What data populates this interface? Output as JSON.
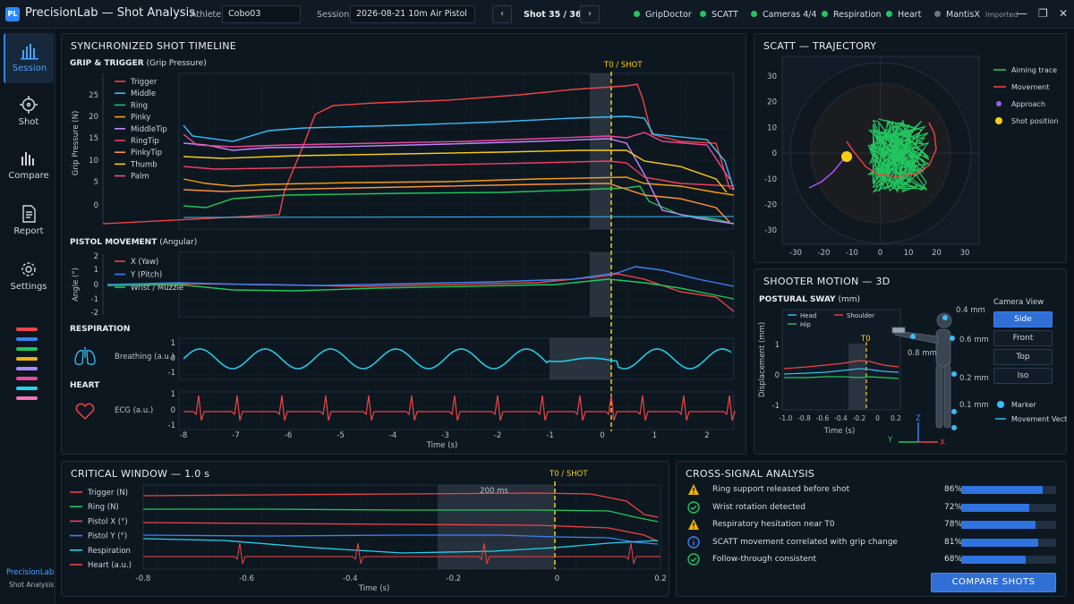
{
  "app": {
    "title": "PrecisionLab — Shot Analysis",
    "logo": "PL"
  },
  "header": {
    "athlete_label": "Athlete",
    "athlete_value": "Cobo03",
    "session_label": "Session",
    "session_value": "2026-08-21 10m Air Pistol",
    "shot_counter": "Shot 35 / 36",
    "prev": "‹",
    "next": "›",
    "statuses": [
      {
        "label": "GripDoctor",
        "color": "#22c55e"
      },
      {
        "label": "SCATT",
        "color": "#22c55e"
      },
      {
        "label": "Cameras 4/4",
        "color": "#22c55e"
      },
      {
        "label": "Respiration",
        "color": "#22c55e"
      },
      {
        "label": "Heart",
        "color": "#22c55e"
      },
      {
        "label": "MantisX",
        "color": "#6b7785",
        "extra": "Imported"
      }
    ],
    "window_controls": [
      "—",
      "❐",
      "✕"
    ]
  },
  "sidebar": {
    "items": [
      {
        "label": "Session",
        "icon": "bar-chart-icon",
        "active": true
      },
      {
        "label": "Shot",
        "icon": "crosshair-icon",
        "active": false
      },
      {
        "label": "Compare",
        "icon": "compare-bars-icon",
        "active": false
      },
      {
        "label": "Report",
        "icon": "report-icon",
        "active": false
      },
      {
        "label": "Settings",
        "icon": "gear-icon",
        "active": false
      }
    ],
    "swatches": [
      "#ef4444",
      "#3b82f6",
      "#22c55e",
      "#eab308",
      "#a78bfa",
      "#ec4899",
      "#22d3ee",
      "#f472b6"
    ],
    "footer_brand": "PrecisionLab",
    "footer_sub": "Shot Analysis"
  },
  "timeline": {
    "title": "SYNCHRONIZED SHOT TIMELINE",
    "t0_label": "T0 / SHOT",
    "grip": {
      "title": "GRIP & TRIGGER",
      "subtitle": "(Grip Pressure)",
      "ylabel": "Grip Pressure (N)",
      "yticks": [
        "25",
        "20",
        "15",
        "10",
        "5",
        "0"
      ],
      "legend": [
        {
          "name": "Trigger",
          "color": "#ef4444"
        },
        {
          "name": "Middle",
          "color": "#38bdf8"
        },
        {
          "name": "Ring",
          "color": "#22c55e"
        },
        {
          "name": "Pinky",
          "color": "#f59e0b"
        },
        {
          "name": "MiddleTip",
          "color": "#c084fc"
        },
        {
          "name": "RingTip",
          "color": "#f43f5e"
        },
        {
          "name": "PinkyTip",
          "color": "#fb923c"
        },
        {
          "name": "Thumb",
          "color": "#facc15"
        },
        {
          "name": "Palm",
          "color": "#ec4899"
        }
      ]
    },
    "movement": {
      "title": "PISTOL MOVEMENT",
      "subtitle": "(Angular)",
      "ylabel": "Angle (°)",
      "yticks": [
        "2",
        "1",
        "0",
        "-1",
        "-2"
      ],
      "legend": [
        {
          "name": "X (Yaw)",
          "color": "#ef4444"
        },
        {
          "name": "Y (Pitch)",
          "color": "#3b82f6"
        },
        {
          "name": "Wrist / Muzzle",
          "color": "#22c55e"
        }
      ]
    },
    "respiration": {
      "title": "RESPIRATION",
      "label": "Breathing (a.u.)",
      "yticks": [
        "1",
        "0",
        "-1"
      ],
      "icon": "lungs-icon"
    },
    "heart": {
      "title": "HEART",
      "label": "ECG (a.u.)",
      "yticks": [
        "1",
        "0",
        "-1"
      ],
      "icon": "heart-icon"
    },
    "xticks": [
      "-8",
      "-7",
      "-6",
      "-5",
      "-4",
      "-3",
      "-2",
      "-1",
      "0",
      "1",
      "2"
    ],
    "xlabel": "Time (s)"
  },
  "scatt": {
    "title": "SCATT — TRAJECTORY",
    "ticks": [
      "30",
      "20",
      "10",
      "0",
      "-10",
      "-20",
      "-30"
    ],
    "xticks": [
      "-30",
      "-20",
      "-10",
      "0",
      "10",
      "20",
      "30"
    ],
    "legend": [
      {
        "name": "Aiming trace",
        "color": "#22c55e"
      },
      {
        "name": "Movement",
        "color": "#ef4444"
      },
      {
        "name": "Approach",
        "color": "#a855f7"
      },
      {
        "name": "Shot position",
        "color": "#facc15"
      }
    ]
  },
  "motion": {
    "title": "SHOOTER MOTION — 3D",
    "sway_title": "POSTURAL SWAY",
    "sway_unit": "(mm)",
    "ylabel": "Displacement (mm)",
    "legend": [
      {
        "name": "Head",
        "color": "#38bdf8"
      },
      {
        "name": "Shoulder",
        "color": "#ef4444"
      },
      {
        "name": "Hip",
        "color": "#22c55e"
      }
    ],
    "t0": "T0",
    "xticks": [
      "-1.0",
      "-0.8",
      "-0.6",
      "-0.4",
      "-0.2",
      "0",
      "0.2"
    ],
    "yticks": [
      "1",
      "0",
      "-1"
    ],
    "xlabel": "Time (s)",
    "annotations": [
      "0.4 mm",
      "0.6 mm",
      "0.8 mm",
      "0.2 mm",
      "0.1 mm"
    ],
    "axes": [
      "Z",
      "Y",
      "X"
    ],
    "camera_title": "Camera View",
    "camera_options": [
      "Side",
      "Front",
      "Top",
      "Iso"
    ],
    "camera_selected": "Side",
    "marker_label": "Marker",
    "vector_label": "Movement Vector"
  },
  "critical": {
    "title": "CRITICAL WINDOW — 1.0 s",
    "t0_label": "T0 / SHOT",
    "window_label": "200 ms",
    "legend": [
      {
        "name": "Trigger (N)",
        "color": "#ef4444"
      },
      {
        "name": "Ring (N)",
        "color": "#22c55e"
      },
      {
        "name": "Pistol X (°)",
        "color": "#ef4444"
      },
      {
        "name": "Pistol Y (°)",
        "color": "#3b82f6"
      },
      {
        "name": "Respiration",
        "color": "#22d3ee"
      },
      {
        "name": "Heart (a.u.)",
        "color": "#ef4444"
      }
    ],
    "xticks": [
      "-0.8",
      "-0.6",
      "-0.4",
      "-0.2",
      "0",
      "0.2"
    ],
    "xlabel": "Time (s)"
  },
  "analysis": {
    "title": "CROSS-SIGNAL ANALYSIS",
    "rows": [
      {
        "icon": "warning-icon",
        "text": "Ring support released before shot",
        "pct": "86%",
        "value": 0.86
      },
      {
        "icon": "check-circle-icon",
        "text": "Wrist rotation detected",
        "pct": "72%",
        "value": 0.72
      },
      {
        "icon": "warning-icon",
        "text": "Respiratory hesitation near T0",
        "pct": "78%",
        "value": 0.78
      },
      {
        "icon": "info-icon",
        "text": "SCATT movement correlated with grip change",
        "pct": "81%",
        "value": 0.81
      },
      {
        "icon": "check-circle-icon",
        "text": "Follow-through consistent",
        "pct": "68%",
        "value": 0.68
      }
    ],
    "button": "COMPARE SHOTS"
  }
}
